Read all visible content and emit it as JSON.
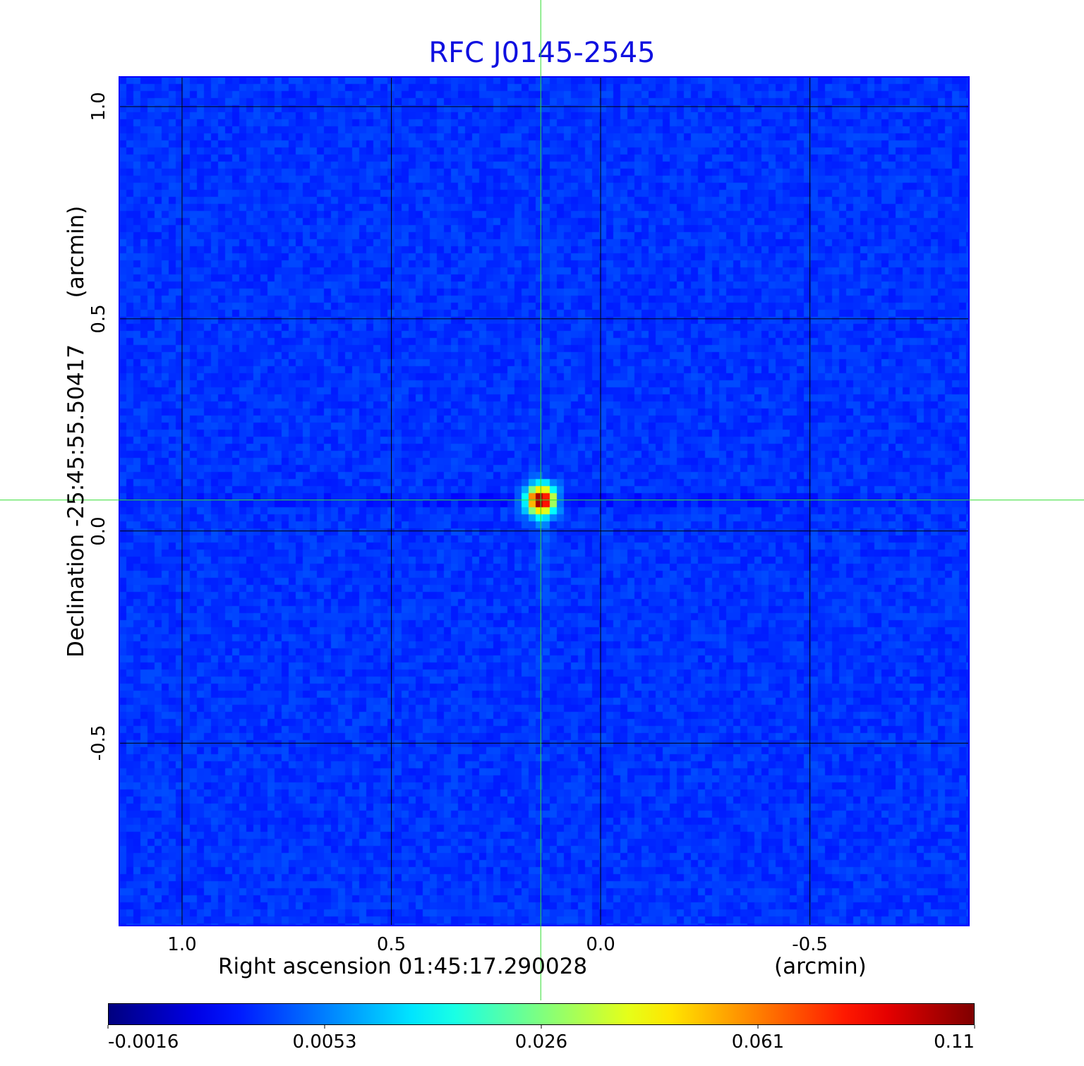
{
  "chart_data": {
    "type": "heatmap",
    "title": "RFC J0145-2545",
    "xlabel": "Right ascension  01:45:17.290028",
    "xunit": "(arcmin)",
    "ylabel": "Declination  -25:45:55.50417",
    "yunit": "(arcmin)",
    "xlim": [
      1.15,
      -0.88
    ],
    "ylim": [
      -0.93,
      1.07
    ],
    "xticks": [
      {
        "value": 1.0,
        "label": "1.0"
      },
      {
        "value": 0.5,
        "label": "0.5"
      },
      {
        "value": 0.0,
        "label": "0.0"
      },
      {
        "value": -0.5,
        "label": "-0.5"
      }
    ],
    "yticks": [
      {
        "value": 1.0,
        "label": "1.0"
      },
      {
        "value": 0.5,
        "label": "0.5"
      },
      {
        "value": 0.0,
        "label": "0.0"
      },
      {
        "value": -0.5,
        "label": "-0.5"
      }
    ],
    "grid": true,
    "grid_color": "#000000",
    "crosshair": {
      "x": 0.143,
      "y": 0.073,
      "color": "#33dd33"
    },
    "source": {
      "x": 0.143,
      "y": 0.073,
      "peak": 0.11
    },
    "colormap": "jet",
    "colorbar": {
      "placement": "bottom",
      "ticks": [
        "-0.0016",
        "0.0053",
        "0.026",
        "0.061",
        "0.11"
      ],
      "range": [
        -0.0016,
        0.11
      ]
    }
  }
}
